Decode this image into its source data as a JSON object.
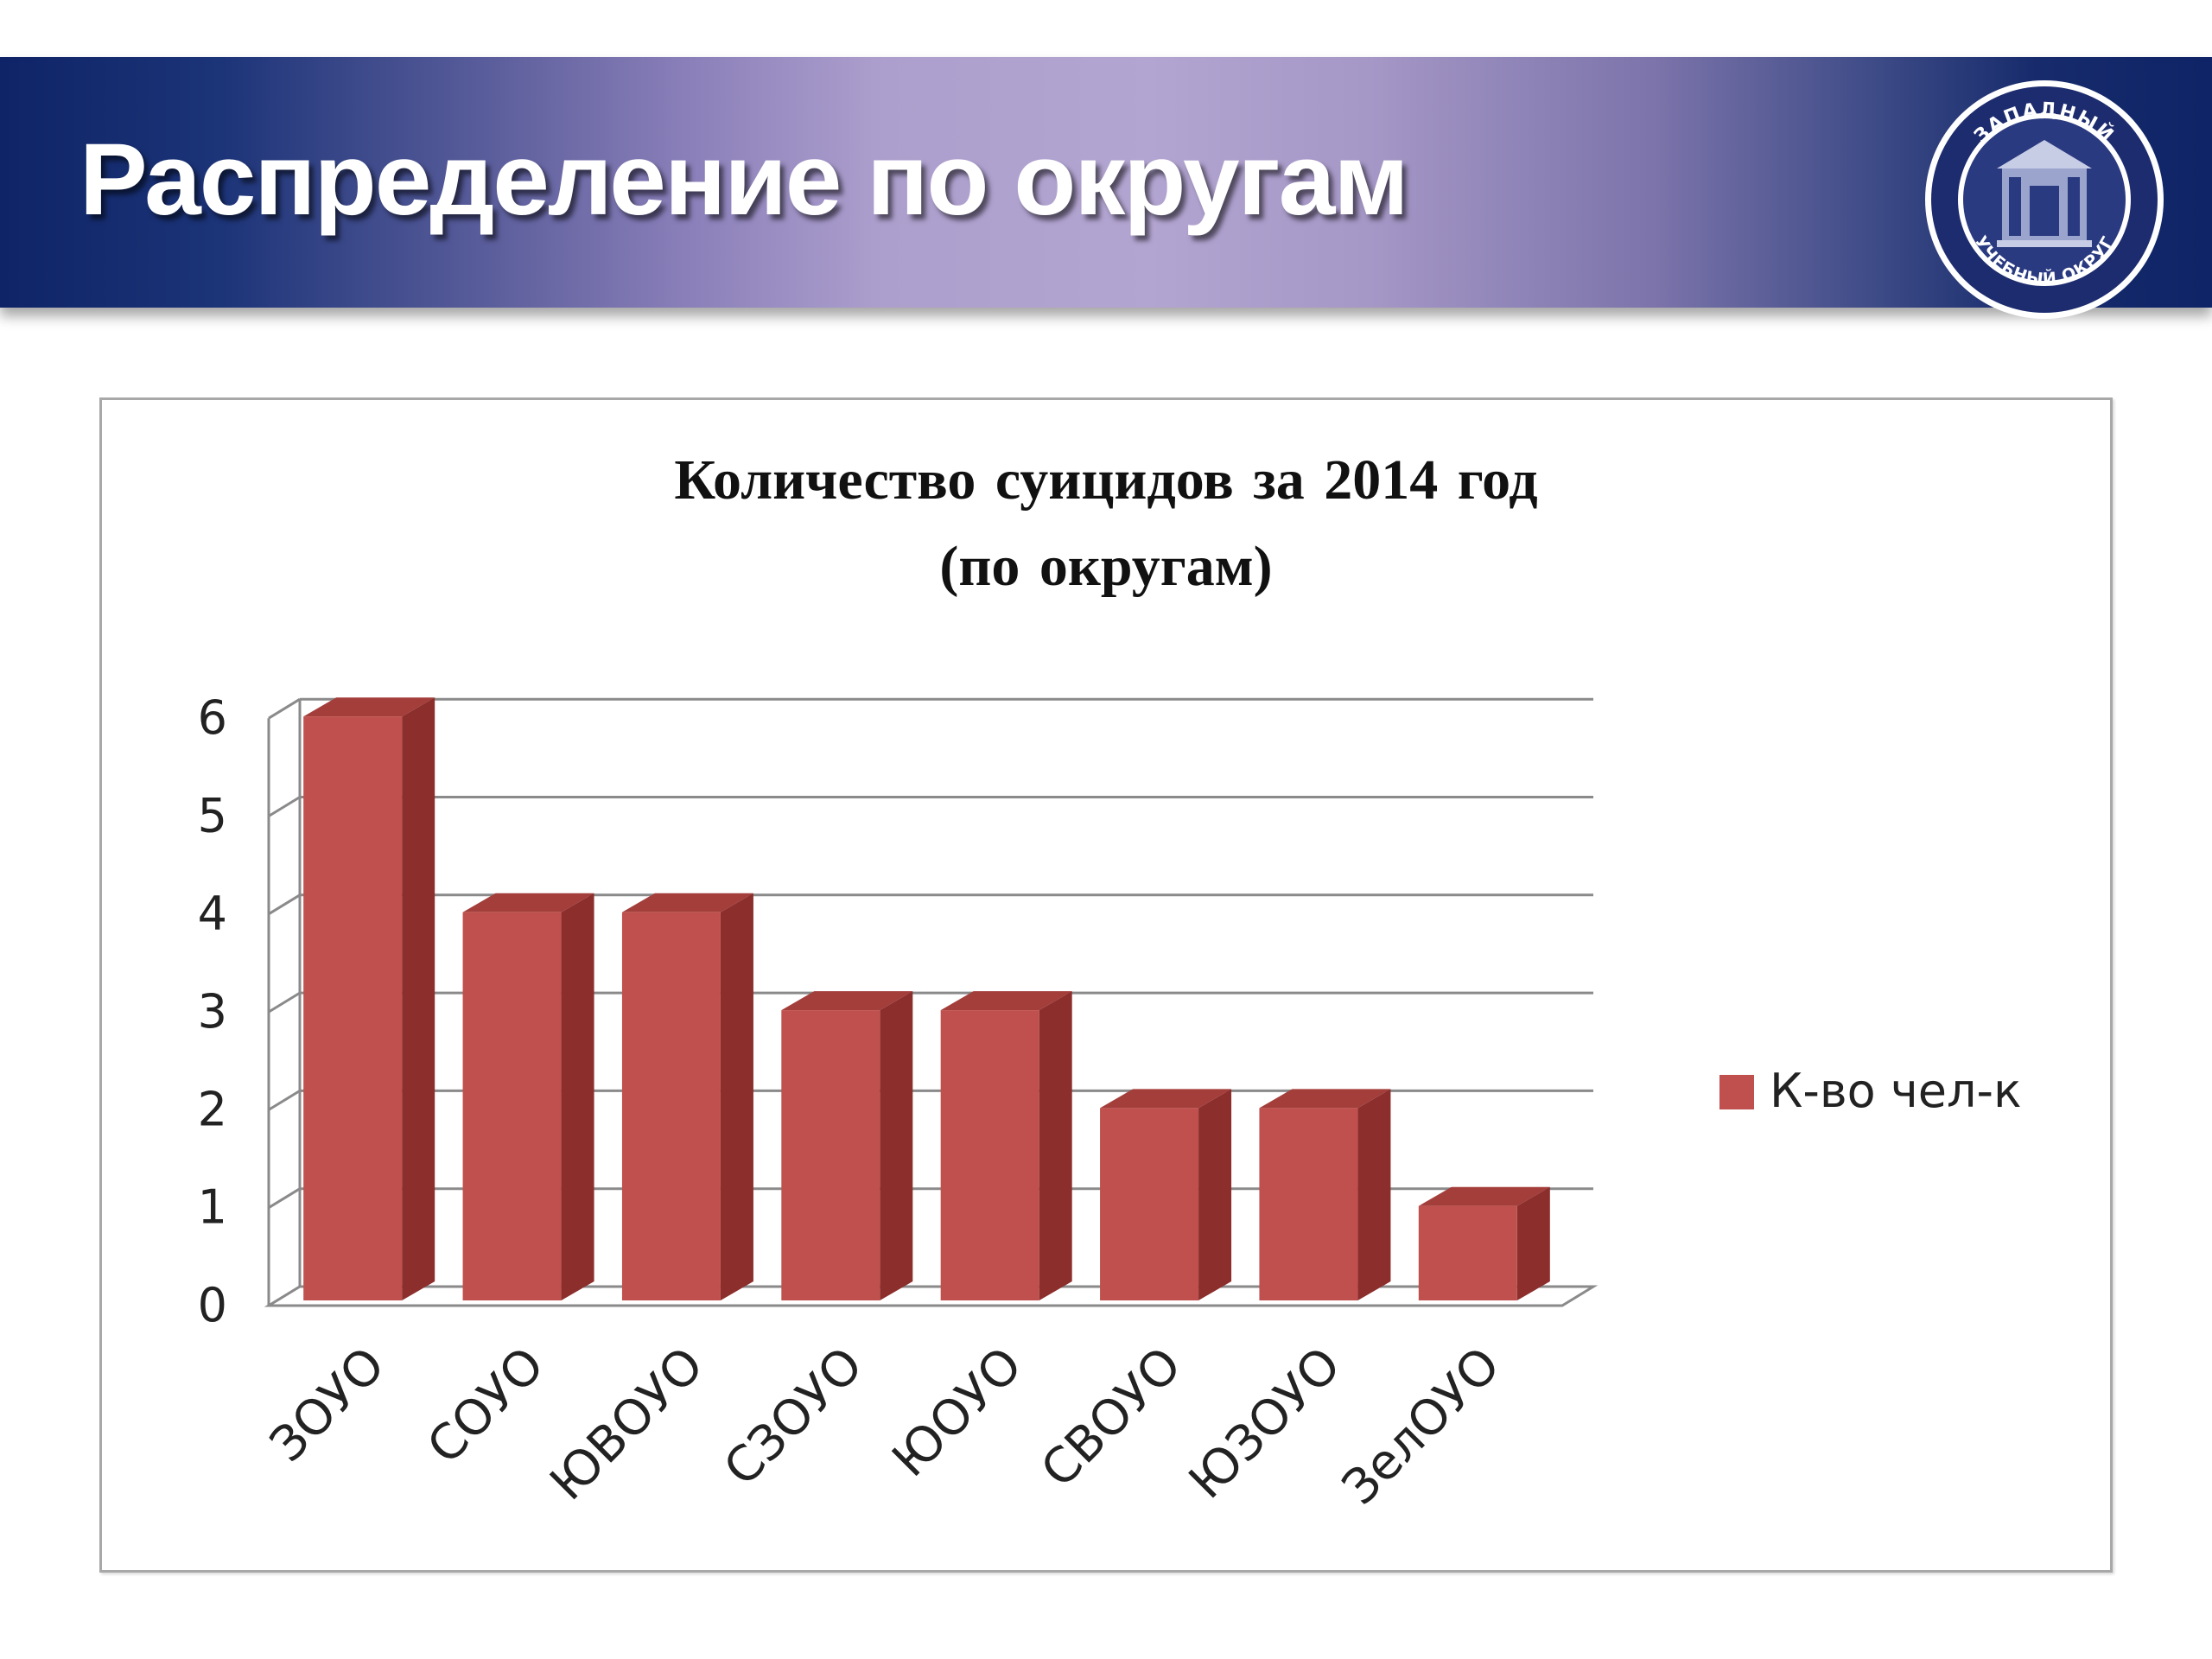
{
  "header": {
    "title": "Распределение по округам",
    "logo_text_top": "ЗАПАДНЫЙ",
    "logo_text_bottom": "УЧЕБНЫЙ ОКРУГ"
  },
  "chart_data": {
    "type": "bar",
    "title_line1": "Количество суицидов за 2014 год",
    "title_line2": "(по округам)",
    "categories": [
      "ЗОУО",
      "СОУО",
      "ЮВОУО",
      "СЗОУО",
      "ЮОУО",
      "СВОУО",
      "ЮЗОУО",
      "ЗелОУО"
    ],
    "series": [
      {
        "name": "К-во чел-к",
        "values": [
          6,
          4,
          4,
          3,
          3,
          2,
          2,
          1
        ]
      }
    ],
    "ylim": [
      0,
      6
    ],
    "yticks": [
      0,
      1,
      2,
      3,
      4,
      5,
      6
    ],
    "grid": true,
    "legend": "right",
    "three_d": true,
    "colors": {
      "bar_front": "#c0504d",
      "bar_side": "#8b2e2c",
      "bar_top": "#a33e3b",
      "grid": "#8a8a8a"
    }
  }
}
